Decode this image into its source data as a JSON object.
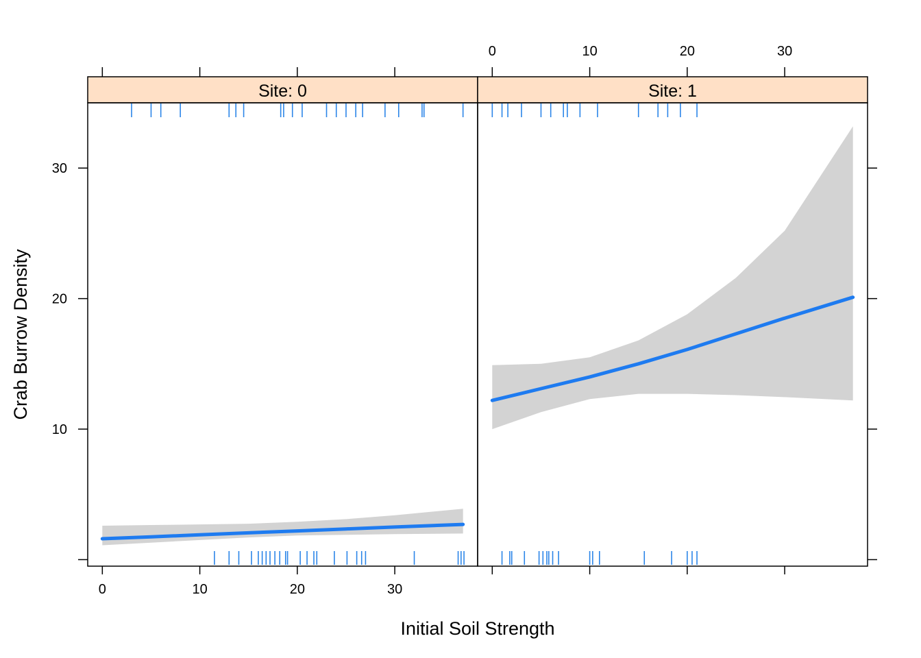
{
  "chart_data": {
    "type": "line",
    "xlabel": "Initial Soil Strength",
    "ylabel": "Crab Burrow Density",
    "xlim": [
      -1.5,
      38.5
    ],
    "ylim": [
      -0.5,
      35
    ],
    "x_ticks": [
      0,
      10,
      20,
      30
    ],
    "y_ticks": [
      10,
      20,
      30
    ],
    "colors": {
      "line": "#1E7BF0",
      "band": "#D3D3D3",
      "strip": "#FFE0C6",
      "rug": "#2B85E8"
    },
    "panels": [
      {
        "strip": "Site: 0",
        "line": {
          "x": [
            0,
            5,
            10,
            15,
            20,
            25,
            30,
            37
          ],
          "y": [
            1.6,
            1.75,
            1.9,
            2.05,
            2.2,
            2.35,
            2.5,
            2.7
          ]
        },
        "ci_upper": {
          "x": [
            0,
            5,
            10,
            15,
            20,
            25,
            30,
            37
          ],
          "y": [
            2.6,
            2.65,
            2.7,
            2.75,
            2.9,
            3.1,
            3.4,
            3.9
          ]
        },
        "ci_lower": {
          "x": [
            0,
            5,
            10,
            15,
            20,
            25,
            30,
            37
          ],
          "y": [
            1.1,
            1.3,
            1.5,
            1.7,
            1.85,
            1.9,
            1.95,
            2.0
          ]
        },
        "rug_top": [
          3,
          5,
          6,
          8,
          13,
          13.7,
          14.5,
          18.3,
          18.6,
          19.5,
          20.5,
          23,
          24,
          25,
          26,
          26.7,
          29,
          30.4,
          32.8,
          33,
          37
        ],
        "rug_bottom": [
          11.5,
          13,
          14,
          15.3,
          16,
          16.4,
          16.8,
          17.2,
          17.7,
          18.2,
          18.8,
          19,
          20.3,
          21,
          21.7,
          22,
          23.8,
          25.1,
          26.1,
          26.6,
          27,
          32,
          36.5,
          36.8,
          37.1
        ]
      },
      {
        "strip": "Site: 1",
        "line": {
          "x": [
            0,
            5,
            10,
            15,
            20,
            25,
            30,
            37
          ],
          "y": [
            12.2,
            13.1,
            14.0,
            15.0,
            16.1,
            17.3,
            18.5,
            20.1
          ]
        },
        "ci_upper": {
          "x": [
            0,
            5,
            10,
            15,
            20,
            25,
            30,
            37
          ],
          "y": [
            14.9,
            15.0,
            15.5,
            16.8,
            18.8,
            21.6,
            25.2,
            33.2
          ]
        },
        "ci_lower": {
          "x": [
            0,
            5,
            10,
            15,
            20,
            25,
            30,
            37
          ],
          "y": [
            10.0,
            11.3,
            12.3,
            12.7,
            12.7,
            12.6,
            12.45,
            12.2
          ]
        },
        "rug_top": [
          0,
          1,
          1.6,
          3,
          5,
          6,
          7.3,
          7.7,
          9,
          10.8,
          15,
          17,
          18,
          19.3,
          21
        ],
        "rug_bottom": [
          1,
          1.8,
          2,
          3.3,
          4.8,
          5.2,
          5.6,
          5.8,
          6.2,
          6.8,
          10,
          10.3,
          11,
          15.6,
          18.4,
          20,
          20.5,
          21
        ]
      }
    ]
  }
}
